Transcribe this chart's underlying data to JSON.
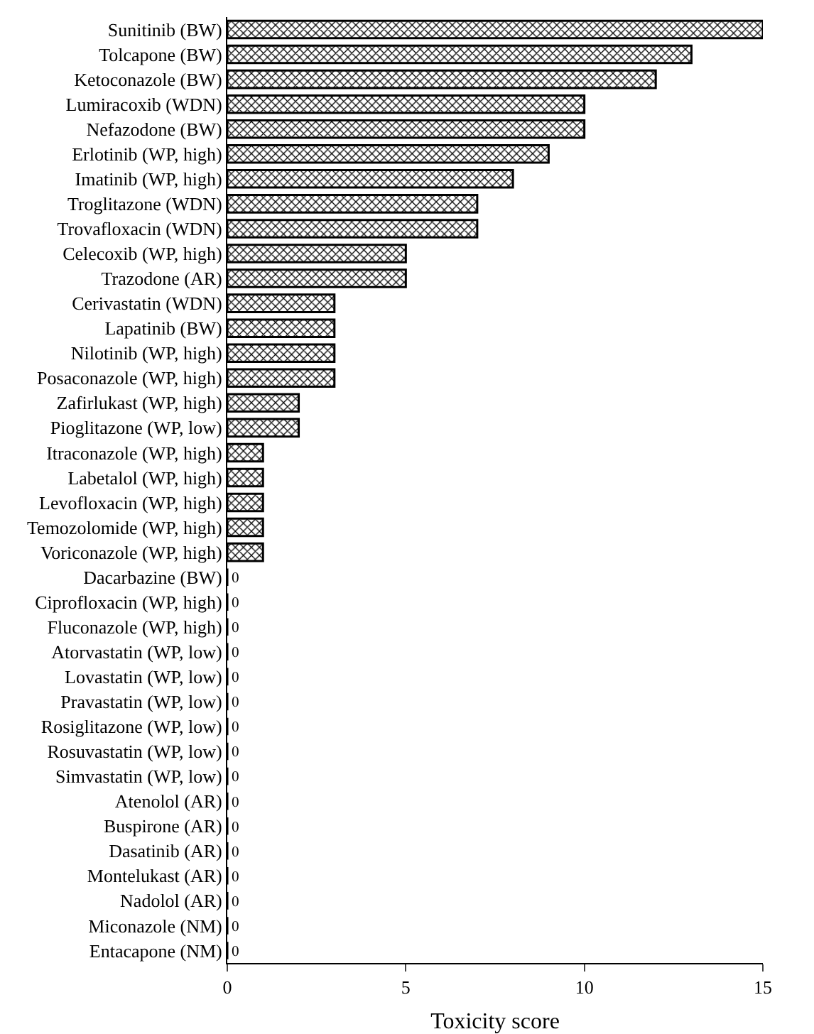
{
  "chart_data": {
    "type": "bar",
    "orientation": "horizontal",
    "xlabel": "Toxicity score",
    "categories": [
      "Sunitinib (BW)",
      "Tolcapone (BW)",
      "Ketoconazole (BW)",
      "Lumiracoxib (WDN)",
      "Nefazodone (BW)",
      "Erlotinib (WP, high)",
      "Imatinib (WP, high)",
      "Troglitazone (WDN)",
      "Trovafloxacin (WDN)",
      "Celecoxib (WP, high)",
      "Trazodone (AR)",
      "Cerivastatin (WDN)",
      "Lapatinib (BW)",
      "Nilotinib (WP, high)",
      "Posaconazole (WP, high)",
      "Zafirlukast (WP, high)",
      "Pioglitazone (WP, low)",
      "Itraconazole (WP, high)",
      "Labetalol (WP, high)",
      "Levofloxacin (WP, high)",
      "Temozolomide (WP, high)",
      "Voriconazole (WP, high)",
      "Dacarbazine (BW)",
      "Ciprofloxacin (WP, high)",
      "Fluconazole (WP, high)",
      "Atorvastatin (WP, low)",
      "Lovastatin (WP, low)",
      "Pravastatin (WP, low)",
      "Rosiglitazone (WP, low)",
      "Rosuvastatin (WP, low)",
      "Simvastatin (WP, low)",
      "Atenolol (AR)",
      "Buspirone (AR)",
      "Dasatinib (AR)",
      "Montelukast (AR)",
      "Nadolol (AR)",
      "Miconazole (NM)",
      "Entacapone (NM)"
    ],
    "values": [
      15,
      13,
      12,
      10,
      10,
      9,
      8,
      7,
      7,
      5,
      5,
      3,
      3,
      3,
      3,
      2,
      2,
      1,
      1,
      1,
      1,
      1,
      0,
      0,
      0,
      0,
      0,
      0,
      0,
      0,
      0,
      0,
      0,
      0,
      0,
      0,
      0,
      0
    ],
    "value_labels": [
      null,
      null,
      null,
      null,
      null,
      null,
      null,
      null,
      null,
      null,
      null,
      null,
      null,
      null,
      null,
      null,
      null,
      null,
      null,
      null,
      null,
      null,
      "0",
      "0",
      "0",
      "0",
      "0",
      "0",
      "0",
      "0",
      "0",
      "0",
      "0",
      "0",
      "0",
      "0",
      "0",
      "0"
    ],
    "color": "#000000",
    "xlim": [
      0,
      15
    ],
    "xticks": [
      0,
      5,
      10,
      15
    ],
    "grid": false,
    "legend": false
  }
}
